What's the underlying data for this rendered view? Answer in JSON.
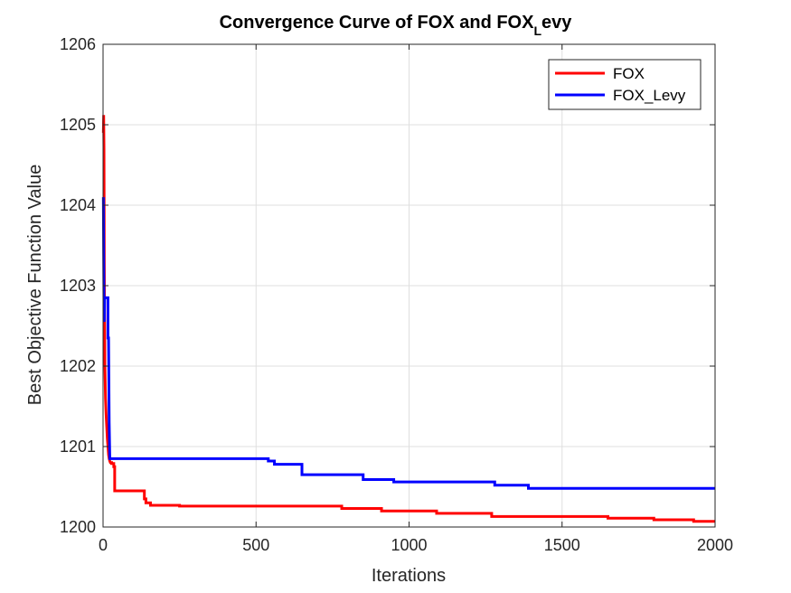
{
  "chart_data": {
    "type": "line",
    "title": {
      "main": "Convergence Curve of FOX and FOX",
      "subscript": "L",
      "suffix": "evy"
    },
    "xlabel": "Iterations",
    "ylabel": "Best Objective Function Value",
    "xlim": [
      0,
      2000
    ],
    "ylim": [
      1200,
      1206
    ],
    "xticks": [
      0,
      500,
      1000,
      1500,
      2000
    ],
    "yticks": [
      1200,
      1201,
      1202,
      1203,
      1204,
      1205,
      1206
    ],
    "xtick_labels": [
      "0",
      "500",
      "1000",
      "1500",
      "2000"
    ],
    "ytick_labels": [
      "1200",
      "1201",
      "1202",
      "1203",
      "1204",
      "1205",
      "1206"
    ],
    "grid": true,
    "legend": {
      "placement": "top-right",
      "labels": [
        "FOX",
        "FOX_Levy"
      ]
    },
    "series": [
      {
        "name": "FOX",
        "color": "#ff0000",
        "x": [
          1,
          2,
          3,
          4,
          5,
          6,
          8,
          10,
          12,
          14,
          16,
          18,
          20,
          22,
          24,
          26,
          28,
          28,
          35,
          35,
          38,
          38,
          135,
          135,
          140,
          140,
          155,
          155,
          250,
          250,
          780,
          780,
          910,
          910,
          1090,
          1090,
          1270,
          1270,
          1650,
          1650,
          1800,
          1800,
          1930,
          1930,
          2000
        ],
        "y": [
          1204.9,
          1205.12,
          1204.7,
          1203.3,
          1202.6,
          1202.0,
          1201.6,
          1201.4,
          1201.25,
          1201.1,
          1201.0,
          1200.9,
          1200.85,
          1200.82,
          1200.8,
          1200.8,
          1200.8,
          1200.79,
          1200.79,
          1200.75,
          1200.75,
          1200.45,
          1200.45,
          1200.35,
          1200.35,
          1200.3,
          1200.3,
          1200.27,
          1200.27,
          1200.26,
          1200.26,
          1200.23,
          1200.23,
          1200.2,
          1200.2,
          1200.17,
          1200.17,
          1200.13,
          1200.13,
          1200.11,
          1200.11,
          1200.09,
          1200.09,
          1200.07,
          1200.07
        ]
      },
      {
        "name": "FOX_Levy",
        "color": "#0000ff",
        "x": [
          1,
          2,
          3,
          4,
          5,
          6,
          8,
          10,
          12,
          14,
          16,
          16,
          18,
          20,
          22,
          22,
          540,
          540,
          560,
          560,
          650,
          650,
          850,
          850,
          950,
          950,
          1280,
          1280,
          1390,
          1390,
          2000
        ],
        "y": [
          1204.1,
          1203.4,
          1202.8,
          1202.55,
          1202.85,
          1202.85,
          1202.85,
          1202.85,
          1202.85,
          1202.85,
          1202.85,
          1202.35,
          1202.35,
          1201.3,
          1200.86,
          1200.85,
          1200.85,
          1200.82,
          1200.82,
          1200.78,
          1200.78,
          1200.65,
          1200.65,
          1200.59,
          1200.59,
          1200.56,
          1200.56,
          1200.52,
          1200.52,
          1200.48,
          1200.48
        ]
      }
    ]
  }
}
